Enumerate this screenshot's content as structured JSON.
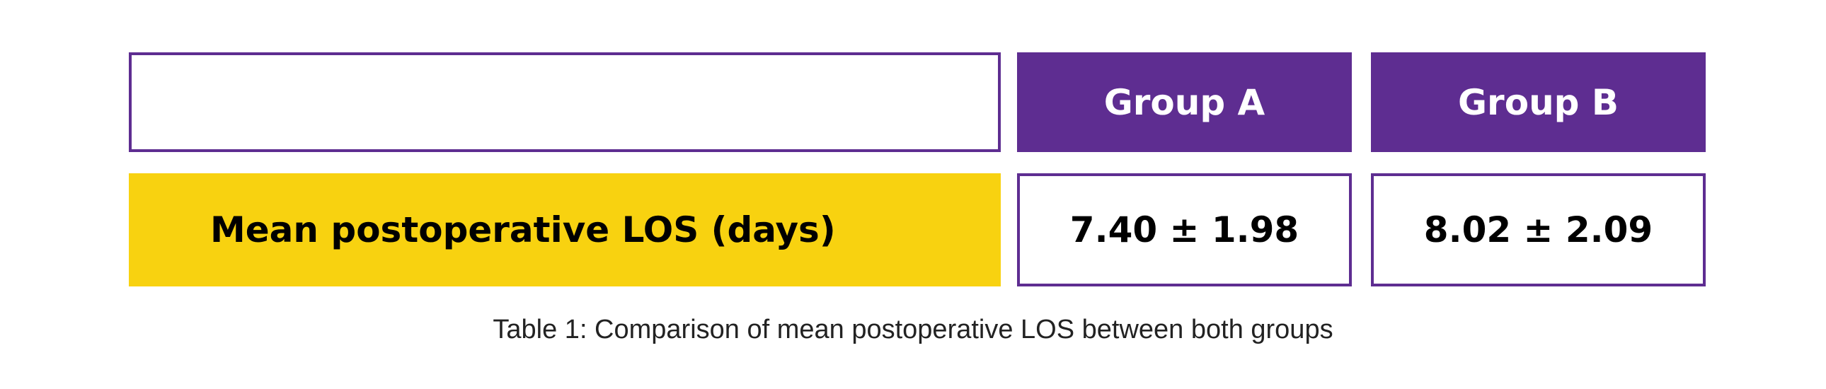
{
  "table": {
    "columns": [
      "",
      "Group A",
      "Group B"
    ],
    "rows": [
      {
        "label": "Mean postoperative LOS (days)",
        "values": [
          "7.40 ± 1.98",
          "8.02 ± 2.09"
        ]
      }
    ],
    "caption": "Table 1: Comparison of mean postoperative LOS between both groups"
  },
  "colors": {
    "accent": "#5e2d91",
    "highlight": "#f8d210"
  }
}
